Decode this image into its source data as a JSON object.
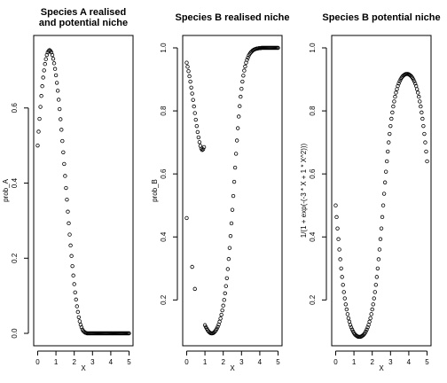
{
  "chart_data": [
    {
      "type": "scatter",
      "title_lines": [
        "Species A realised",
        "and potential niche"
      ],
      "xlabel": "X",
      "ylabel": "prob_A",
      "xlim": [
        0,
        5
      ],
      "ylim": [
        0,
        0.76
      ],
      "xticks": [
        "0",
        "1",
        "2",
        "3",
        "4",
        "5"
      ],
      "yticks": [
        "0.0",
        "0.2",
        "0.4",
        "0.6"
      ],
      "ytick_values": [
        0,
        0.2,
        0.4,
        0.6
      ],
      "series": [
        {
          "x": [
            0.0,
            0.05,
            0.1,
            0.15,
            0.2,
            0.25,
            0.3,
            0.35,
            0.4,
            0.45,
            0.5,
            0.55,
            0.6,
            0.65,
            0.7,
            0.75,
            0.8,
            0.85,
            0.9,
            0.95,
            1.0,
            1.05,
            1.1,
            1.15,
            1.2,
            1.25,
            1.3,
            1.35,
            1.4,
            1.45,
            1.5,
            1.55,
            1.6,
            1.65,
            1.7,
            1.75,
            1.8,
            1.85,
            1.9,
            1.95,
            2.0,
            2.05,
            2.1,
            2.15,
            2.2,
            2.25,
            2.3,
            2.35,
            2.4,
            2.45,
            2.5,
            2.55,
            2.6,
            2.65,
            2.7,
            2.75,
            2.8,
            2.85,
            2.9,
            2.95,
            3.0,
            3.05,
            3.1,
            3.15,
            3.2,
            3.25,
            3.3,
            3.35,
            3.4,
            3.45,
            3.5,
            3.55,
            3.6,
            3.65,
            3.7,
            3.75,
            3.8,
            3.85,
            3.9,
            3.95,
            4.0,
            4.05,
            4.1,
            4.15,
            4.2,
            4.25,
            4.3,
            4.35,
            4.4,
            4.45,
            4.5,
            4.55,
            4.6,
            4.65,
            4.7,
            4.75,
            4.8,
            4.85,
            4.9,
            4.95,
            5.0
          ],
          "y": [
            0.5,
            0.537,
            0.571,
            0.603,
            0.632,
            0.658,
            0.681,
            0.7,
            0.717,
            0.73,
            0.741,
            0.748,
            0.752,
            0.754,
            0.752,
            0.748,
            0.741,
            0.731,
            0.719,
            0.704,
            0.687,
            0.667,
            0.646,
            0.622,
            0.597,
            0.57,
            0.542,
            0.512,
            0.482,
            0.451,
            0.419,
            0.387,
            0.356,
            0.324,
            0.293,
            0.263,
            0.234,
            0.206,
            0.179,
            0.154,
            0.131,
            0.109,
            0.09,
            0.072,
            0.057,
            0.043,
            0.032,
            0.023,
            0.016,
            0.01,
            0.006,
            0.004,
            0.002,
            0.001,
            0.0,
            0.0,
            0.0,
            0.0,
            0.0,
            0.0,
            0.0,
            0.0,
            0.0,
            0.0,
            0.0,
            0.0,
            0.0,
            0.0,
            0.0,
            0.0,
            0.0,
            0.0,
            0.0,
            0.0,
            0.0,
            0.0,
            0.0,
            0.0,
            0.0,
            0.0,
            0.0,
            0.0,
            0.0,
            0.0,
            0.0,
            0.0,
            0.0,
            0.0,
            0.0,
            0.0,
            0.0,
            0.0,
            0.0,
            0.0,
            0.0,
            0.0,
            0.0,
            0.0,
            0.0,
            0.0,
            0.0
          ]
        }
      ]
    },
    {
      "type": "scatter",
      "title_lines": [
        "Species B realised niche"
      ],
      "xlabel": "X",
      "ylabel": "prob_B",
      "xlim": [
        0,
        5
      ],
      "ylim": [
        0.094,
        1.0
      ],
      "xticks": [
        "0",
        "1",
        "2",
        "3",
        "4",
        "5"
      ],
      "yticks": [
        "0.2",
        "0.4",
        "0.6",
        "0.8",
        "1.0"
      ],
      "ytick_values": [
        0.2,
        0.4,
        0.6,
        0.8,
        1.0
      ],
      "series": [
        {
          "x": [
            0.0,
            0.05,
            0.1,
            0.15,
            0.2,
            0.25,
            0.3,
            0.35,
            0.4,
            0.45,
            0.5,
            0.55,
            0.6,
            0.65,
            0.7,
            0.75,
            0.8,
            0.85,
            0.9,
            0.95,
            1.0,
            1.05,
            1.1,
            1.15,
            1.2,
            1.25,
            1.3,
            1.35,
            1.4,
            1.45,
            1.5,
            1.55,
            1.6,
            1.65,
            1.7,
            1.75,
            1.8,
            1.85,
            1.9,
            1.95,
            2.0,
            2.05,
            2.1,
            2.15,
            2.2,
            2.25,
            2.3,
            2.35,
            2.4,
            2.45,
            2.5,
            2.55,
            2.6,
            2.65,
            2.7,
            2.75,
            2.8,
            2.85,
            2.9,
            2.95,
            3.0,
            3.05,
            3.1,
            3.15,
            3.2,
            3.25,
            3.3,
            3.35,
            3.4,
            3.45,
            3.5,
            3.55,
            3.6,
            3.65,
            3.7,
            3.75,
            3.8,
            3.85,
            3.9,
            3.95,
            4.0,
            4.05,
            4.1,
            4.15,
            4.2,
            4.25,
            4.3,
            4.35,
            4.4,
            4.45,
            4.5,
            4.55,
            4.6,
            4.65,
            4.7,
            4.75,
            4.8,
            4.85,
            4.9,
            4.95,
            5.0
          ],
          "y": [
            0.953,
            0.94,
            0.926,
            0.91,
            0.893,
            0.874,
            0.855,
            0.835,
            0.814,
            0.793,
            0.772,
            0.752,
            0.733,
            0.716,
            0.701,
            0.689,
            0.68,
            0.676,
            0.678,
            0.685,
            0.12,
            0.114,
            0.109,
            0.104,
            0.1,
            0.097,
            0.095,
            0.094,
            0.094,
            0.095,
            0.097,
            0.1,
            0.104,
            0.109,
            0.115,
            0.122,
            0.131,
            0.141,
            0.153,
            0.167,
            0.182,
            0.2,
            0.221,
            0.244,
            0.269,
            0.298,
            0.33,
            0.365,
            0.403,
            0.443,
            0.486,
            0.53,
            0.575,
            0.62,
            0.664,
            0.706,
            0.745,
            0.782,
            0.815,
            0.845,
            0.87,
            0.893,
            0.912,
            0.928,
            0.941,
            0.953,
            0.962,
            0.969,
            0.976,
            0.981,
            0.985,
            0.988,
            0.991,
            0.993,
            0.995,
            0.996,
            0.997,
            0.998,
            0.998,
            0.999,
            0.999,
            0.999,
            1.0,
            1.0,
            1.0,
            1.0,
            1.0,
            1.0,
            1.0,
            1.0,
            1.0,
            1.0,
            1.0,
            1.0,
            1.0,
            1.0,
            1.0,
            1.0,
            1.0,
            1.0,
            1.0
          ]
        },
        {
          "x": [
            0.0,
            0.3,
            0.45
          ],
          "y": [
            0.46,
            0.305,
            0.235
          ]
        }
      ]
    },
    {
      "type": "scatter",
      "title_lines": [
        "Species B potential niche"
      ],
      "xlabel": "X",
      "ylabel": "1/(1 + exp(-(-3 * X + 1 * X^2)))",
      "xlim": [
        0,
        5
      ],
      "ylim": [
        0.094,
        1.0
      ],
      "xticks": [
        "0",
        "1",
        "2",
        "3",
        "4",
        "5"
      ],
      "yticks": [
        "0.2",
        "0.4",
        "0.6",
        "0.8",
        "1.0"
      ],
      "ytick_values": [
        0.2,
        0.4,
        0.6,
        0.8,
        1.0
      ],
      "series": [
        {
          "x": [
            0.0,
            0.05,
            0.1,
            0.15,
            0.2,
            0.25,
            0.3,
            0.35,
            0.4,
            0.45,
            0.5,
            0.55,
            0.6,
            0.65,
            0.7,
            0.75,
            0.8,
            0.85,
            0.9,
            0.95,
            1.0,
            1.05,
            1.1,
            1.15,
            1.2,
            1.25,
            1.3,
            1.35,
            1.4,
            1.45,
            1.5,
            1.55,
            1.6,
            1.65,
            1.7,
            1.75,
            1.8,
            1.85,
            1.9,
            1.95,
            2.0,
            2.05,
            2.1,
            2.15,
            2.2,
            2.25,
            2.3,
            2.35,
            2.4,
            2.45,
            2.5,
            2.55,
            2.6,
            2.65,
            2.7,
            2.75,
            2.8,
            2.85,
            2.9,
            2.95,
            3.0,
            3.05,
            3.1,
            3.15,
            3.2,
            3.25,
            3.3,
            3.35,
            3.4,
            3.45,
            3.5,
            3.55,
            3.6,
            3.65,
            3.7,
            3.75,
            3.8,
            3.85,
            3.9,
            3.95,
            4.0,
            4.05,
            4.1,
            4.15,
            4.2,
            4.25,
            4.3,
            4.35,
            4.4,
            4.45,
            4.5,
            4.55,
            4.6,
            4.65,
            4.7,
            4.75,
            4.8,
            4.85,
            4.9,
            4.95,
            5.0
          ],
          "y": [
            0.5,
            0.463,
            0.427,
            0.393,
            0.36,
            0.329,
            0.3,
            0.273,
            0.248,
            0.225,
            0.205,
            0.186,
            0.17,
            0.155,
            0.142,
            0.131,
            0.121,
            0.113,
            0.106,
            0.1,
            0.095,
            0.091,
            0.088,
            0.086,
            0.084,
            0.083,
            0.083,
            0.083,
            0.084,
            0.086,
            0.088,
            0.091,
            0.095,
            0.1,
            0.106,
            0.113,
            0.121,
            0.131,
            0.142,
            0.155,
            0.17,
            0.186,
            0.205,
            0.225,
            0.248,
            0.273,
            0.3,
            0.329,
            0.36,
            0.393,
            0.427,
            0.463,
            0.5,
            0.537,
            0.573,
            0.607,
            0.64,
            0.671,
            0.7,
            0.727,
            0.752,
            0.775,
            0.795,
            0.814,
            0.83,
            0.845,
            0.858,
            0.869,
            0.879,
            0.887,
            0.894,
            0.9,
            0.905,
            0.909,
            0.912,
            0.914,
            0.916,
            0.917,
            0.917,
            0.917,
            0.916,
            0.914,
            0.912,
            0.909,
            0.905,
            0.9,
            0.894,
            0.887,
            0.879,
            0.869,
            0.858,
            0.845,
            0.83,
            0.814,
            0.795,
            0.775,
            0.752,
            0.727,
            0.7,
            0.671,
            0.64
          ]
        }
      ]
    }
  ]
}
